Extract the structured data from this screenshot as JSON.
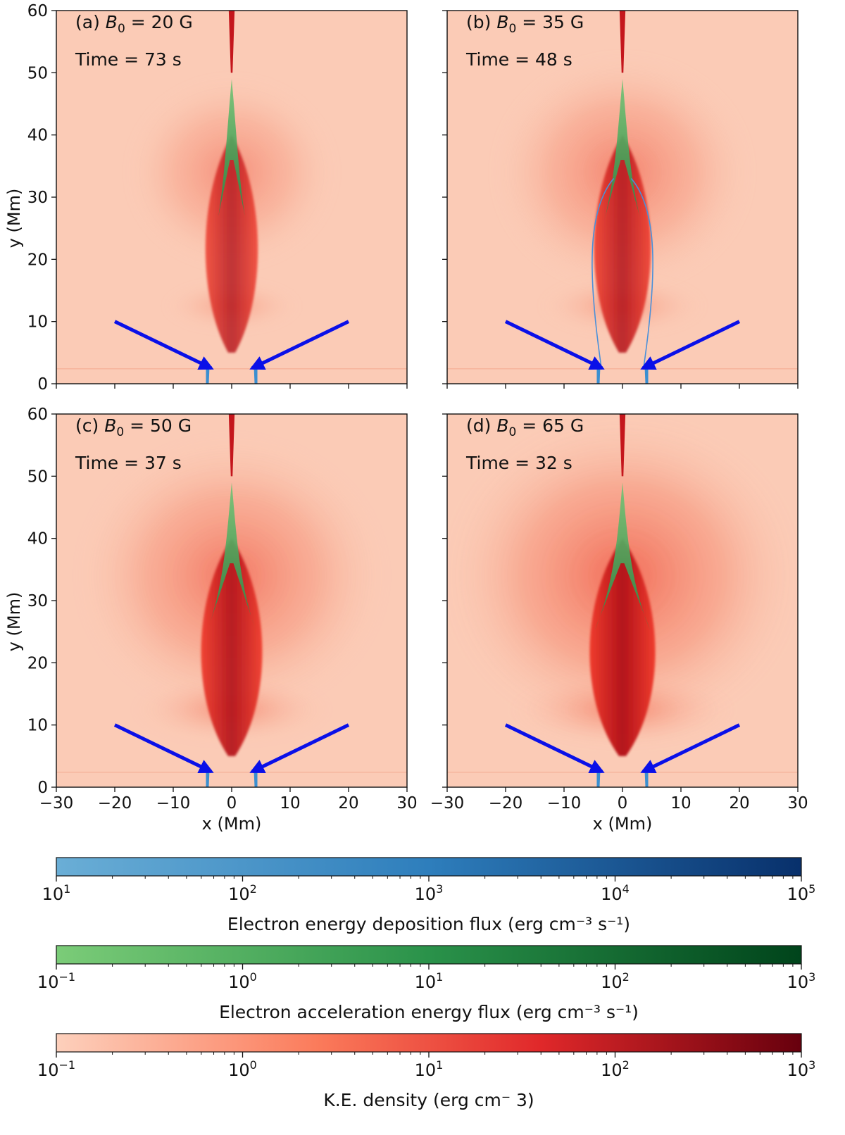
{
  "chart_data": {
    "type": "heatmap",
    "description_axes": {
      "x": {
        "label": "x (Mm)",
        "range": [
          -30,
          30
        ],
        "ticks": [
          -30,
          -20,
          -10,
          0,
          10,
          20,
          30
        ],
        "tick_labels": [
          "−30",
          "−20",
          "−10",
          "0",
          "10",
          "20",
          "30"
        ]
      },
      "y": {
        "label": "y (Mm)",
        "range": [
          0,
          60
        ],
        "ticks": [
          0,
          10,
          20,
          30,
          40,
          50,
          60
        ],
        "tick_labels": [
          "0",
          "10",
          "20",
          "30",
          "40",
          "50",
          "60"
        ]
      }
    },
    "panels": [
      {
        "id": "a",
        "label": "(a)",
        "B_symbol": "B",
        "B_sub": "0",
        "B_value": "= 20 G",
        "time": "Time = 73 s",
        "B0_G": 20,
        "time_s": 73,
        "intensity": 0.35
      },
      {
        "id": "b",
        "label": "(b)",
        "B_symbol": "B",
        "B_sub": "0",
        "B_value": "= 35 G",
        "time": "Time = 48 s",
        "B0_G": 35,
        "time_s": 48,
        "intensity": 0.55
      },
      {
        "id": "c",
        "label": "(c)",
        "B_symbol": "B",
        "B_sub": "0",
        "B_value": "= 50 G",
        "time": "Time = 37 s",
        "B0_G": 50,
        "time_s": 37,
        "intensity": 0.75
      },
      {
        "id": "d",
        "label": "(d)",
        "B_symbol": "B",
        "B_sub": "0",
        "B_value": "= 65 G",
        "time": "Time = 32 s",
        "B0_G": 65,
        "time_s": 32,
        "intensity": 0.95
      }
    ],
    "arrows": [
      {
        "from": [
          -20,
          10
        ],
        "to": [
          -3.5,
          2.5
        ]
      },
      {
        "from": [
          20,
          10
        ],
        "to": [
          3.5,
          2.5
        ]
      }
    ],
    "colorbars": [
      {
        "name": "deposition",
        "label": "Electron energy deposition flux (erg cm⁻³ s⁻¹)",
        "range": [
          10.0,
          100000.0
        ],
        "ticks": [
          "10",
          "10",
          "10",
          "10",
          "10"
        ],
        "exponents": [
          "1",
          "2",
          "3",
          "4",
          "5"
        ],
        "colors": [
          "#6aaed6",
          "#2e7ebc",
          "#08306b"
        ]
      },
      {
        "name": "acceleration",
        "label": "Electron acceleration energy flux (erg cm⁻³ s⁻¹)",
        "range": [
          0.1,
          1000.0
        ],
        "ticks": [
          "10",
          "10",
          "10",
          "10",
          "10"
        ],
        "exponents": [
          "−1",
          "0",
          "1",
          "2",
          "3"
        ],
        "colors": [
          "#74c476",
          "#238b45",
          "#00441b"
        ]
      },
      {
        "name": "kinetic",
        "label": "K.E. density (erg cm⁻ 3)",
        "range": [
          0.1,
          1000.0
        ],
        "ticks": [
          "10",
          "10",
          "10",
          "10",
          "10"
        ],
        "exponents": [
          "−1",
          "0",
          "1",
          "2",
          "3"
        ],
        "colors": [
          "#fcc5b0",
          "#fb6a4a",
          "#cb181d",
          "#67000d"
        ]
      }
    ]
  },
  "colors": {
    "background": "#fbcbb6",
    "arrow": "#0a10e8",
    "foot": "#3a8fd0",
    "accel": "#41ab5d",
    "ke_mid": "#ef3b2c",
    "ke_dark": "#a50f15"
  }
}
